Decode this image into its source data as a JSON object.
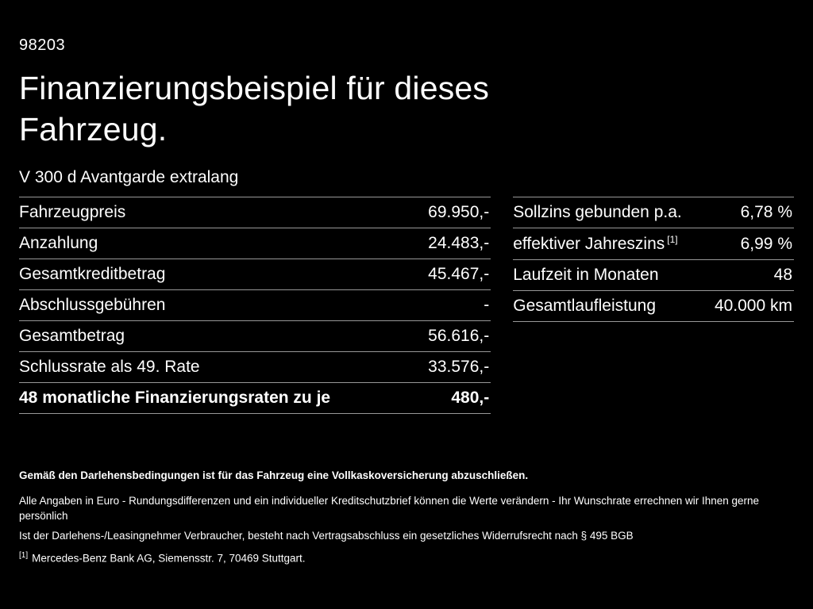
{
  "header": {
    "code": "98203",
    "title": "Finanzierungsbeispiel für dieses Fahrzeug.",
    "vehicle": "V 300 d Avantgarde extralang"
  },
  "financing_table": {
    "rows": [
      {
        "label": "Fahrzeugpreis",
        "value": "69.950,-"
      },
      {
        "label": "Anzahlung",
        "value": "24.483,-"
      },
      {
        "label": "Gesamtkreditbetrag",
        "value": "45.467,-"
      },
      {
        "label": "Abschlussgebühren",
        "value": "-"
      },
      {
        "label": "Gesamtbetrag",
        "value": "56.616,-"
      },
      {
        "label": "Schlussrate als 49. Rate",
        "value": "33.576,-"
      },
      {
        "label": "48 monatliche Finanzierungsraten zu je",
        "value": "480,-"
      }
    ]
  },
  "conditions_table": {
    "rows": [
      {
        "label": "Sollzins gebunden p.a.",
        "sup": "",
        "value": "6,78 %"
      },
      {
        "label": "effektiver Jahreszins",
        "sup": "[1]",
        "value": "6,99 %"
      },
      {
        "label": "Laufzeit in Monaten",
        "sup": "",
        "value": "48"
      },
      {
        "label": "Gesamtlaufleistung",
        "sup": "",
        "value": "40.000 km"
      }
    ]
  },
  "footer": {
    "insurance_note": "Gemäß den Darlehensbedingungen ist für das Fahrzeug eine Vollkaskoversicherung abzuschließen.",
    "disclaimer1": "Alle Angaben in Euro - Rundungsdifferenzen und ein individueller Kreditschutzbrief können die Werte verändern - Ihr Wunschrate errechnen wir Ihnen gerne persönlich",
    "disclaimer2": "Ist der Darlehens-/Leasingnehmer Verbraucher, besteht nach Vertragsabschluss ein gesetzliches Widerrufsrecht nach § 495 BGB",
    "footnote_marker": "[1]",
    "footnote_text": "Mercedes-Benz Bank AG, Siemensstr. 7, 70469 Stuttgart."
  },
  "colors": {
    "background": "#000000",
    "text": "#ffffff",
    "divider": "#989898"
  }
}
